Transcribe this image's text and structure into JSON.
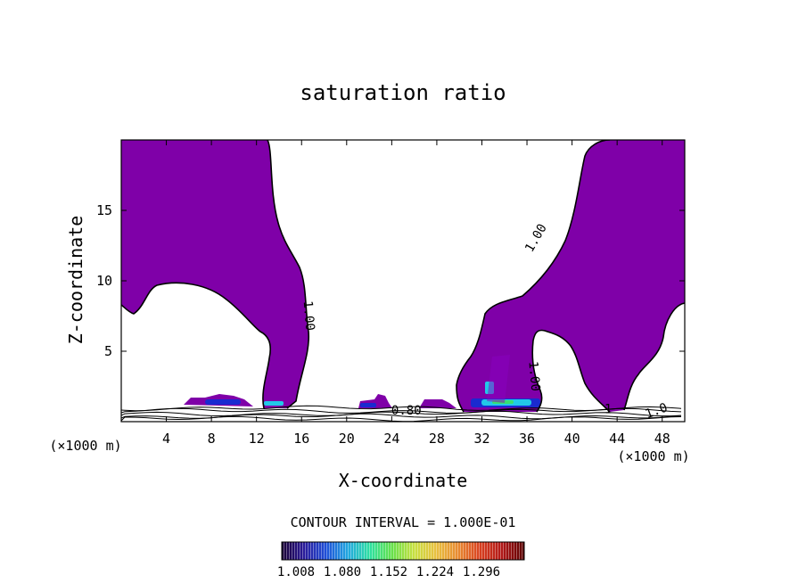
{
  "chart_data": {
    "type": "heatmap",
    "title": "saturation ratio",
    "xlabel": "X-coordinate",
    "ylabel": "Z-coordinate",
    "x_unit_left": "(×1000 m)",
    "x_unit_right": "(×1000 m)",
    "xlim": [
      0,
      50
    ],
    "ylim": [
      0,
      20
    ],
    "x_ticks": [
      4,
      8,
      12,
      16,
      20,
      24,
      28,
      32,
      36,
      40,
      44,
      48
    ],
    "y_ticks": [
      5,
      10,
      15
    ],
    "contour_labels": [
      {
        "text": "1.00",
        "x": 16.3,
        "y": 7.5,
        "angle": 85
      },
      {
        "text": "1.00",
        "x": 37.1,
        "y": 12.9,
        "angle": -60
      },
      {
        "text": "1.00",
        "x": 36.3,
        "y": 3.2,
        "angle": 85
      },
      {
        "text": "0.80",
        "x": 25.3,
        "y": 0.5,
        "angle": 0
      },
      {
        "text": "1",
        "x": 43.2,
        "y": 0.6,
        "angle": 0
      },
      {
        "text": "1.0",
        "x": 47.6,
        "y": 0.5,
        "angle": -20
      }
    ],
    "contour_interval_text": "CONTOUR INTERVAL = 1.000E-01",
    "colorbar": {
      "tick_labels": [
        "1.008",
        "1.080",
        "1.152",
        "1.224",
        "1.296"
      ],
      "colors": [
        "#1a0033",
        "#2b1b9a",
        "#1f4fd8",
        "#22a8e0",
        "#2ee0a0",
        "#66e04a",
        "#c8e040",
        "#e8c040",
        "#e88a30",
        "#d84020",
        "#b01818",
        "#5a0000"
      ]
    },
    "fill_color": "#7f00a8",
    "hotspot_colors": [
      "#1a2ad0",
      "#22c8e8",
      "#38e070"
    ]
  }
}
